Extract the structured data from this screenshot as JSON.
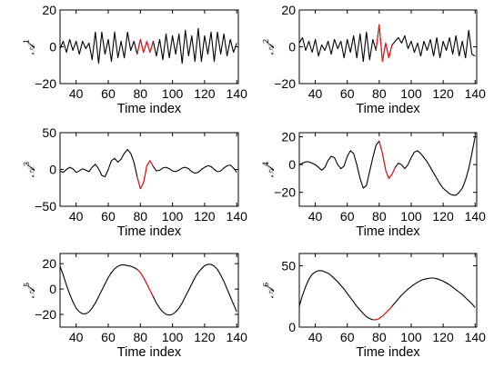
{
  "chart_data": [
    {
      "type": "line",
      "ylabel": "𝒜",
      "ylabel_sup": "1",
      "xlabel": "Time index",
      "xlim": [
        30,
        141
      ],
      "ylim": [
        -20,
        20
      ],
      "xticks": [
        "40",
        "60",
        "80",
        "100",
        "120",
        "140"
      ],
      "yticks": [
        "−20",
        "0",
        "20"
      ],
      "ytick_values": [
        -20,
        0,
        20
      ],
      "colors": {
        "data": "#000000",
        "estimate": "#e8191c"
      },
      "highlight": [
        78,
        88
      ],
      "x": [
        30,
        32,
        34,
        36,
        38,
        40,
        42,
        44,
        46,
        48,
        50,
        52,
        54,
        56,
        58,
        60,
        62,
        64,
        66,
        68,
        70,
        72,
        74,
        76,
        78,
        80,
        82,
        84,
        86,
        88,
        90,
        92,
        94,
        96,
        98,
        100,
        102,
        104,
        106,
        108,
        110,
        112,
        114,
        116,
        118,
        120,
        122,
        124,
        126,
        128,
        130,
        132,
        134,
        136,
        138,
        140
      ],
      "series": [
        {
          "values": [
            -1,
            3,
            -3,
            4,
            -2,
            3,
            -4,
            3,
            -1,
            2,
            -7,
            8,
            -9,
            8,
            -4,
            4,
            -8,
            8,
            -6,
            3,
            -6,
            8,
            -2,
            3,
            -4,
            4,
            -3,
            3,
            -3,
            3,
            -5,
            4,
            -7,
            7,
            -6,
            6,
            -4,
            7,
            -9,
            9,
            -5,
            6,
            -8,
            10,
            -8,
            6,
            -4,
            8,
            -8,
            8,
            -4,
            7,
            -5,
            4,
            -3,
            2
          ]
        }
      ]
    },
    {
      "type": "line",
      "ylabel": "𝒜",
      "ylabel_sup": "2",
      "xlabel": "Time index",
      "xlim": [
        30,
        141
      ],
      "ylim": [
        -20,
        20
      ],
      "xticks": [
        "40",
        "60",
        "80",
        "100",
        "120",
        "140"
      ],
      "yticks": [
        "−20",
        "0",
        "20"
      ],
      "ytick_values": [
        -20,
        0,
        20
      ],
      "colors": {
        "data": "#000000",
        "estimate": "#e8191c"
      },
      "highlight": [
        78,
        88
      ],
      "x": [
        30,
        32,
        34,
        36,
        38,
        40,
        42,
        44,
        46,
        48,
        50,
        52,
        54,
        56,
        58,
        60,
        62,
        64,
        66,
        68,
        70,
        72,
        74,
        76,
        78,
        80,
        82,
        84,
        86,
        88,
        90,
        92,
        94,
        96,
        98,
        100,
        102,
        104,
        106,
        108,
        110,
        112,
        114,
        116,
        118,
        120,
        122,
        124,
        126,
        128,
        130,
        132,
        134,
        136,
        138,
        140
      ],
      "series": [
        {
          "values": [
            2,
            5,
            -2,
            3,
            -3,
            4,
            -5,
            1,
            -2,
            3,
            -4,
            4,
            -1,
            3,
            -6,
            4,
            -3,
            6,
            -6,
            7,
            -8,
            8,
            -7,
            4,
            -2,
            12,
            -8,
            2,
            -6,
            1,
            3,
            5,
            2,
            6,
            -1,
            3,
            -3,
            2,
            -5,
            3,
            -2,
            4,
            -5,
            5,
            -6,
            3,
            -2,
            5,
            -4,
            6,
            -5,
            3,
            -6,
            9,
            -4,
            -5
          ]
        }
      ]
    },
    {
      "type": "line",
      "ylabel": "𝒜",
      "ylabel_sup": "3",
      "xlabel": "Time index",
      "xlim": [
        30,
        141
      ],
      "ylim": [
        -50,
        50
      ],
      "xticks": [
        "40",
        "60",
        "80",
        "100",
        "120",
        "140"
      ],
      "yticks": [
        "−50",
        "0",
        "50"
      ],
      "ytick_values": [
        -50,
        0,
        50
      ],
      "colors": {
        "data": "#000000",
        "estimate": "#e8191c"
      },
      "highlight": [
        78,
        88
      ],
      "x": [
        30,
        32,
        34,
        36,
        38,
        40,
        42,
        44,
        46,
        48,
        50,
        52,
        54,
        56,
        58,
        60,
        62,
        64,
        66,
        68,
        70,
        72,
        74,
        76,
        78,
        80,
        82,
        84,
        86,
        88,
        90,
        92,
        94,
        96,
        98,
        100,
        102,
        104,
        106,
        108,
        110,
        112,
        114,
        116,
        118,
        120,
        122,
        124,
        126,
        128,
        130,
        132,
        134,
        136,
        138,
        140
      ],
      "series": [
        {
          "values": [
            -2,
            -4,
            0,
            3,
            1,
            -4,
            -2,
            1,
            -1,
            -3,
            3,
            7,
            1,
            -8,
            -10,
            0,
            12,
            15,
            10,
            14,
            22,
            27,
            22,
            10,
            -10,
            -26,
            -18,
            5,
            12,
            4,
            -2,
            -1,
            2,
            3,
            1,
            -2,
            -3,
            -1,
            2,
            3,
            1,
            -3,
            -5,
            -4,
            0,
            3,
            5,
            4,
            0,
            -3,
            -2,
            2,
            5,
            6,
            2,
            -4
          ]
        }
      ]
    },
    {
      "type": "line",
      "ylabel": "𝒜",
      "ylabel_sup": "4",
      "xlabel": "Time index",
      "xlim": [
        30,
        141
      ],
      "ylim": [
        -30,
        23
      ],
      "xticks": [
        "40",
        "60",
        "80",
        "100",
        "120",
        "140"
      ],
      "yticks": [
        "−20",
        "0",
        "20"
      ],
      "ytick_values": [
        -20,
        0,
        20
      ],
      "colors": {
        "data": "#000000",
        "estimate": "#e8191c"
      },
      "highlight": [
        80,
        90
      ],
      "x": [
        30,
        32,
        34,
        36,
        38,
        40,
        42,
        44,
        46,
        48,
        50,
        52,
        54,
        56,
        58,
        60,
        62,
        64,
        66,
        68,
        70,
        72,
        74,
        76,
        78,
        80,
        82,
        84,
        86,
        88,
        90,
        92,
        94,
        96,
        98,
        100,
        102,
        104,
        106,
        108,
        110,
        112,
        114,
        116,
        118,
        120,
        122,
        124,
        126,
        128,
        130,
        132,
        134,
        136,
        138,
        140
      ],
      "series": [
        {
          "values": [
            0,
            1,
            2,
            2,
            1,
            0,
            -2,
            -4,
            -2,
            3,
            6,
            5,
            0,
            -3,
            -1,
            6,
            10,
            8,
            0,
            -10,
            -17,
            -15,
            -5,
            5,
            14,
            17,
            8,
            -4,
            -10,
            -7,
            -2,
            1,
            0,
            -3,
            0,
            5,
            9,
            10,
            8,
            5,
            2,
            -2,
            -6,
            -10,
            -14,
            -17,
            -19,
            -21,
            -22,
            -22,
            -20,
            -17,
            -11,
            -3,
            8,
            20
          ]
        }
      ]
    },
    {
      "type": "line",
      "ylabel": "𝒜",
      "ylabel_sup": "5",
      "xlabel": "Time index",
      "xlim": [
        30,
        141
      ],
      "ylim": [
        -30,
        28
      ],
      "xticks": [
        "40",
        "60",
        "80",
        "100",
        "120",
        "140"
      ],
      "yticks": [
        "−20",
        "0",
        "20"
      ],
      "ytick_values": [
        -20,
        0,
        20
      ],
      "colors": {
        "data": "#000000",
        "estimate": "#e8191c"
      },
      "highlight": [
        78,
        88
      ],
      "x": [
        30,
        32,
        34,
        36,
        38,
        40,
        42,
        44,
        46,
        48,
        50,
        52,
        54,
        56,
        58,
        60,
        62,
        64,
        66,
        68,
        70,
        72,
        74,
        76,
        78,
        80,
        82,
        84,
        86,
        88,
        90,
        92,
        94,
        96,
        98,
        100,
        102,
        104,
        106,
        108,
        110,
        112,
        114,
        116,
        118,
        120,
        122,
        124,
        126,
        128,
        130,
        132,
        134,
        136,
        138,
        140
      ],
      "series": [
        {
          "values": [
            18,
            11,
            3,
            -4,
            -10,
            -15,
            -18,
            -19.5,
            -19.5,
            -18,
            -15,
            -11,
            -6,
            -1,
            4,
            9,
            13,
            16,
            18,
            19,
            19,
            18.5,
            18,
            17,
            15.5,
            13,
            9,
            4,
            -1,
            -6,
            -11,
            -15,
            -18,
            -20,
            -20.5,
            -20,
            -18,
            -15,
            -11,
            -6,
            -1,
            4,
            9,
            13,
            16,
            18.5,
            19.5,
            19.5,
            18,
            15.5,
            11,
            6,
            0,
            -6,
            -12,
            -18
          ]
        }
      ]
    },
    {
      "type": "line",
      "ylabel": "𝒜",
      "ylabel_sup": "6",
      "xlabel": "Time index",
      "xlim": [
        30,
        141
      ],
      "ylim": [
        0,
        60
      ],
      "xticks": [
        "40",
        "60",
        "80",
        "100",
        "120",
        "140"
      ],
      "yticks": [
        "0",
        "50"
      ],
      "ytick_values": [
        0,
        50
      ],
      "colors": {
        "data": "#000000",
        "estimate": "#e8191c"
      },
      "highlight": [
        76,
        88
      ],
      "x": [
        30,
        32,
        34,
        36,
        38,
        40,
        42,
        44,
        46,
        48,
        50,
        52,
        54,
        56,
        58,
        60,
        62,
        64,
        66,
        68,
        70,
        72,
        74,
        76,
        78,
        80,
        82,
        84,
        86,
        88,
        90,
        92,
        94,
        96,
        98,
        100,
        102,
        104,
        106,
        108,
        110,
        112,
        114,
        116,
        118,
        120,
        122,
        124,
        126,
        128,
        130,
        132,
        134,
        136,
        138,
        140
      ],
      "series": [
        {
          "values": [
            17,
            26,
            33,
            39,
            43,
            45,
            46,
            46,
            45,
            44,
            42,
            39.5,
            37,
            34,
            31,
            27.5,
            24,
            20.5,
            17,
            14,
            11,
            8.5,
            7,
            6,
            6,
            7,
            9,
            11.5,
            14,
            17,
            20,
            23,
            26,
            28.5,
            31,
            33,
            35,
            36.5,
            38,
            39,
            39.5,
            40,
            40,
            39.5,
            38.5,
            37.5,
            36,
            34.5,
            32.5,
            30.5,
            28.5,
            26.5,
            24,
            21.5,
            19,
            16
          ]
        }
      ]
    }
  ]
}
